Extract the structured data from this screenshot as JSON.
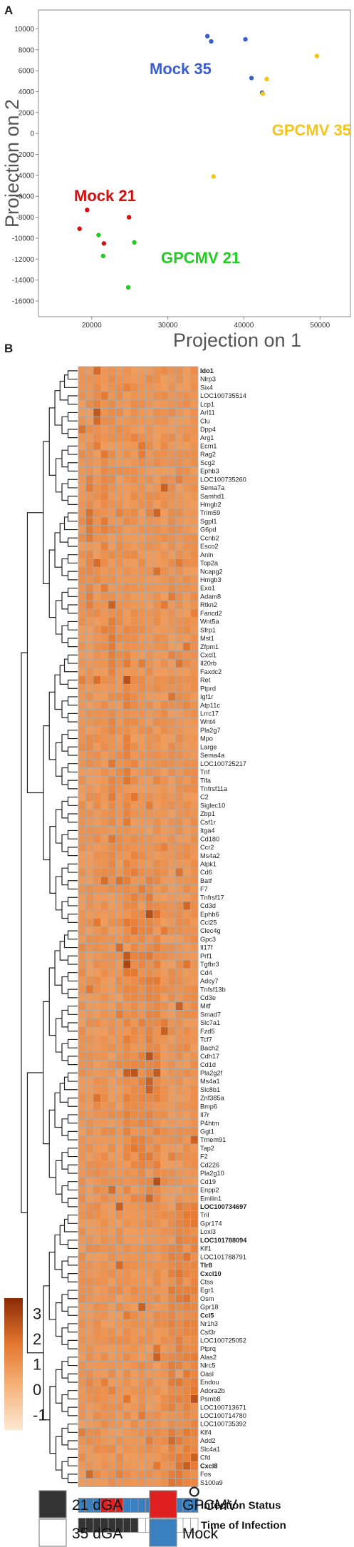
{
  "panel_a_label": "A",
  "panel_b_label": "B",
  "chart_data": [
    {
      "type": "scatter",
      "xlabel": "Projection on 1",
      "ylabel": "Projection on 2",
      "xlim": [
        13000,
        54000
      ],
      "ylim": [
        -17500,
        11800
      ],
      "xticks": [
        20000,
        30000,
        40000,
        50000
      ],
      "yticks": [
        -16000,
        -14000,
        -12000,
        -10000,
        -8000,
        -6000,
        -4000,
        -2000,
        0,
        2000,
        4000,
        6000,
        8000,
        10000
      ],
      "grid": false,
      "series": [
        {
          "name": "Mock 35",
          "color": "#3a5fcd",
          "x": [
            35200,
            35700,
            40200,
            41000,
            42400
          ],
          "y": [
            9300,
            8800,
            9000,
            5300,
            3900
          ]
        },
        {
          "name": "GPCMV 35",
          "color": "#f5c518",
          "x": [
            49600,
            43000,
            42500,
            36000
          ],
          "y": [
            7400,
            5200,
            3800,
            -4100
          ]
        },
        {
          "name": "Mock 21",
          "color": "#d01010",
          "x": [
            19400,
            24900,
            18400,
            21600
          ],
          "y": [
            -7300,
            -8000,
            -9100,
            -10500
          ]
        },
        {
          "name": "GPCMV 21",
          "color": "#22cc22",
          "x": [
            20900,
            25600,
            21500,
            24800
          ],
          "y": [
            -9700,
            -10400,
            -11700,
            -14700
          ]
        }
      ]
    },
    {
      "type": "heatmap",
      "rows": [
        "Ido1",
        "Nlrp3",
        "Six4",
        "LOC100735514",
        "Lcp1",
        "Arl11",
        "Clu",
        "Dpp4",
        "Arg1",
        "Ecm1",
        "Rag2",
        "Scg2",
        "Ephb3",
        "LOC100735260",
        "Sema7a",
        "Samhd1",
        "Hmgb2",
        "Trim59",
        "Sgpl1",
        "G6pd",
        "Ccnb2",
        "Esco2",
        "Anln",
        "Top2a",
        "Ncapg2",
        "Hmgb3",
        "Exo1",
        "Adam8",
        "Rtkn2",
        "Fancd2",
        "Wnt5a",
        "Sfrp1",
        "Mst1",
        "Zfpm1",
        "Cxcl1",
        "Il20rb",
        "Faxdc2",
        "Ret",
        "Ptprd",
        "Igf1r",
        "Atp11c",
        "Lrrc17",
        "Wnt4",
        "Pla2g7",
        "Mpo",
        "Large",
        "Sema4a",
        "LOC100725217",
        "Tnf",
        "Tifa",
        "Tnfrsf11a",
        "C2",
        "Siglec10",
        "Zbp1",
        "Csf1r",
        "Itga4",
        "Cd180",
        "Ccr2",
        "Ms4a2",
        "Alpk1",
        "Cd6",
        "Batf",
        "F7",
        "Tnfrsf17",
        "Cd3d",
        "Ephb6",
        "Ccl25",
        "Clec4g",
        "Gpc3",
        "Il17f",
        "Prf1",
        "Tgfbr3",
        "Cd4",
        "Adcy7",
        "Tnfsf13b",
        "Cd3e",
        "Mitf",
        "Smad7",
        "Slc7a1",
        "Fzd5",
        "Tcf7",
        "Bach2",
        "Cdh17",
        "Cd1d",
        "Pla2g2f",
        "Ms4a1",
        "Slc8b1",
        "Znf385a",
        "Bmp6",
        "Il7r",
        "P4htm",
        "Ggt1",
        "Tmem91",
        "Tap2",
        "F2",
        "Cd226",
        "Pla2g10",
        "Cd19",
        "Enpp2",
        "Emilin1",
        "LOC100734697",
        "Tril",
        "Gpr174",
        "Loxl3",
        "LOC101788094",
        "Klf1",
        "LOC101788791",
        "Tlr8",
        "Cxcl10",
        "Ctss",
        "Egr1",
        "Osm",
        "Gpr18",
        "Ccl5",
        "Nr1h3",
        "Csf3r",
        "LOC100725052",
        "Ptprq",
        "Alas2",
        "Nlrc5",
        "Oasl",
        "Endou",
        "Adora2b",
        "Psmb8",
        "LOC100713671",
        "LOC100714780",
        "LOC100735392",
        "Klf4",
        "Add2",
        "Slc4a1",
        "Cfd",
        "Cxcl8",
        "Fos",
        "S100a9"
      ],
      "bold_rows": [
        "Ido1",
        "LOC100734697",
        "LOC101788094",
        "Tlr8",
        "Cxcl10",
        "Ccl5",
        "Cxcl8"
      ],
      "colorbar": {
        "ticks": [
          3,
          2,
          1,
          0,
          -1
        ],
        "range": [
          -1.6,
          3.6
        ],
        "low_color": "#fde8d4",
        "high_color": "#8b2a05"
      },
      "annotation_rows": [
        {
          "label": "Infection Status",
          "values": [
            "Mock",
            "Mock",
            "Mock",
            "GPCMV",
            "GPCMV",
            "GPCMV",
            "Mock",
            "Mock",
            "Mock",
            "Mock",
            "GPCMV",
            "GPCMV",
            "GPCMV",
            "Mock",
            "Mock",
            "Mock"
          ]
        },
        {
          "label": "Time of Infection",
          "values": [
            "21 dGA",
            "21 dGA",
            "21 dGA",
            "21 dGA",
            "21 dGA",
            "21 dGA",
            "21 dGA",
            "21 dGA",
            "35 dGA",
            "35 dGA",
            "35 dGA",
            "35 dGA",
            "35 dGA",
            "35 dGA",
            "35 dGA",
            "35 dGA"
          ]
        }
      ],
      "legend": [
        {
          "label": "21 dGA",
          "color": "#333333"
        },
        {
          "label": "35 dGA",
          "color": "#ffffff"
        },
        {
          "label": "GPCMV",
          "color": "#e02020"
        },
        {
          "label": "Mock",
          "color": "#3a7fc0"
        }
      ]
    }
  ]
}
